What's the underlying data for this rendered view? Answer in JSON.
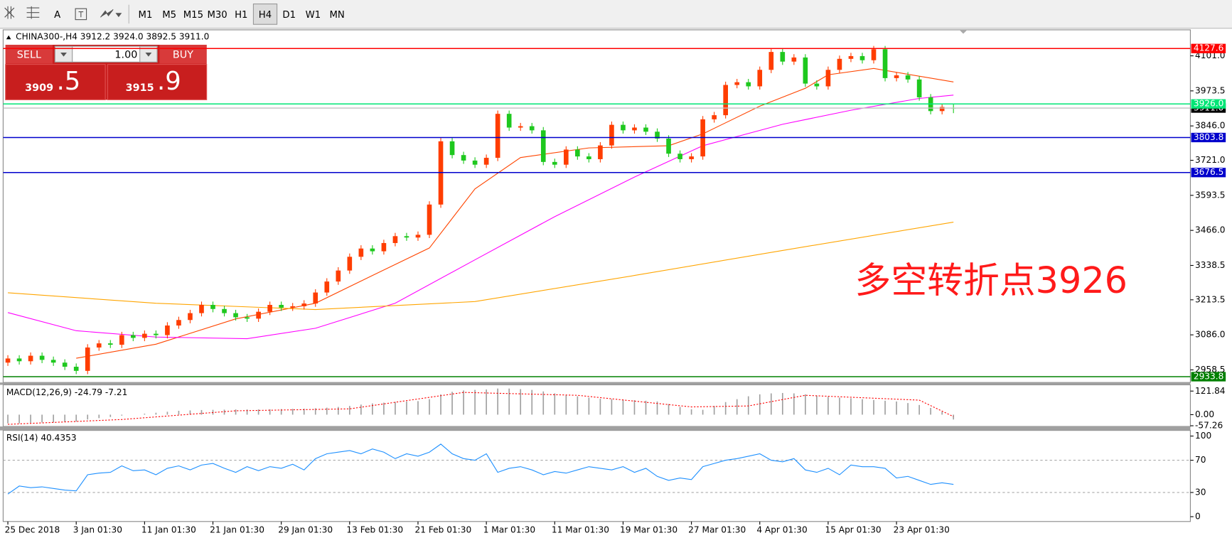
{
  "toolbar": {
    "tools": [
      "A"
    ],
    "timeframes": [
      "M1",
      "M5",
      "M15",
      "M30",
      "H1",
      "H4",
      "D1",
      "W1",
      "MN"
    ],
    "active_timeframe": "H4"
  },
  "trade_panel": {
    "sell": "SELL",
    "buy": "BUY",
    "lots": "1.00",
    "sell_big": "3909",
    "sell_small": ".5",
    "buy_big": "3915",
    "buy_small": ".9"
  },
  "chart_data": {
    "type": "candlestick",
    "header": "CHINA300-,H4  3912.2 3924.0 3892.5 3911.0",
    "annotation": "多空转折点3926",
    "up_color": "#ff3d00",
    "down_color": "#1ec81e",
    "categories": [
      "25 Dec 2018",
      null,
      null,
      null,
      null,
      null,
      "3 Jan 01:30",
      null,
      null,
      null,
      null,
      null,
      "11 Jan 01:30",
      null,
      null,
      null,
      null,
      null,
      "21 Jan 01:30",
      null,
      null,
      null,
      null,
      null,
      "29 Jan 01:30",
      null,
      null,
      null,
      null,
      null,
      "13 Feb 01:30",
      null,
      null,
      null,
      null,
      null,
      "21 Feb 01:30",
      null,
      null,
      null,
      null,
      null,
      "1 Mar 01:30",
      null,
      null,
      null,
      null,
      null,
      "11 Mar 01:30",
      null,
      null,
      null,
      null,
      null,
      "19 Mar 01:30",
      null,
      null,
      null,
      null,
      null,
      "27 Mar 01:30",
      null,
      null,
      null,
      null,
      null,
      "4 Apr 01:30",
      null,
      null,
      null,
      null,
      null,
      "15 Apr 01:30",
      null,
      null,
      null,
      null,
      null,
      "23 Apr 01:30",
      null,
      null,
      null,
      null,
      null
    ],
    "candles": {
      "open": [
        2985,
        3000,
        2990,
        3010,
        2995,
        2985,
        2970,
        2955,
        3040,
        3055,
        3050,
        3085,
        3075,
        3090,
        3085,
        3120,
        3140,
        3165,
        3195,
        3180,
        3165,
        3150,
        3145,
        3170,
        3195,
        3185,
        3190,
        3200,
        3240,
        3280,
        3320,
        3370,
        3400,
        3390,
        3420,
        3445,
        3440,
        3450,
        3560,
        3790,
        3740,
        3720,
        3705,
        3730,
        3890,
        3840,
        3845,
        3830,
        3715,
        3705,
        3760,
        3735,
        3725,
        3775,
        3850,
        3830,
        3840,
        3825,
        3800,
        3745,
        3725,
        3735,
        3870,
        3885,
        3995,
        4005,
        3990,
        4050,
        4115,
        4080,
        4095,
        4000,
        3990,
        4050,
        4090,
        4100,
        4085,
        4125,
        4020,
        4030,
        4015,
        3950,
        3900,
        3912.2
      ],
      "high": [
        3012,
        3012,
        3022,
        3022,
        3007,
        2997,
        2982,
        3052,
        3067,
        3067,
        3097,
        3097,
        3102,
        3102,
        3132,
        3152,
        3177,
        3207,
        3207,
        3192,
        3177,
        3162,
        3182,
        3207,
        3207,
        3202,
        3212,
        3252,
        3292,
        3332,
        3382,
        3412,
        3412,
        3432,
        3457,
        3457,
        3462,
        3572,
        3802,
        3802,
        3752,
        3732,
        3742,
        3902,
        3902,
        3857,
        3857,
        3842,
        3727,
        3772,
        3772,
        3747,
        3787,
        3862,
        3862,
        3852,
        3852,
        3837,
        3812,
        3757,
        3747,
        3882,
        3897,
        4007,
        4017,
        4017,
        4062,
        4127,
        4127,
        4107,
        4107,
        4012,
        4062,
        4102,
        4112,
        4112,
        4137,
        4137,
        4042,
        4042,
        4027,
        3962,
        3927,
        3924
      ],
      "low": [
        2973,
        2978,
        2978,
        2983,
        2973,
        2958,
        2943,
        2943,
        3028,
        3038,
        3038,
        3063,
        3063,
        3073,
        3073,
        3108,
        3128,
        3153,
        3168,
        3153,
        3138,
        3133,
        3133,
        3158,
        3173,
        3173,
        3178,
        3188,
        3228,
        3268,
        3308,
        3358,
        3378,
        3378,
        3408,
        3428,
        3428,
        3438,
        3548,
        3728,
        3708,
        3693,
        3693,
        3718,
        3828,
        3828,
        3818,
        3703,
        3693,
        3693,
        3723,
        3713,
        3713,
        3763,
        3818,
        3818,
        3813,
        3788,
        3733,
        3713,
        3713,
        3723,
        3858,
        3873,
        3983,
        3978,
        3978,
        4038,
        4068,
        4068,
        3988,
        3978,
        3978,
        4038,
        4078,
        4073,
        4073,
        4008,
        4008,
        4003,
        3938,
        3888,
        3888,
        3892.5
      ],
      "close": [
        3000,
        2990,
        3010,
        2995,
        2985,
        2970,
        2955,
        3040,
        3055,
        3050,
        3085,
        3075,
        3090,
        3085,
        3120,
        3140,
        3165,
        3195,
        3180,
        3165,
        3150,
        3145,
        3170,
        3195,
        3185,
        3190,
        3200,
        3240,
        3280,
        3320,
        3370,
        3400,
        3390,
        3420,
        3445,
        3440,
        3450,
        3560,
        3790,
        3740,
        3720,
        3705,
        3730,
        3890,
        3840,
        3845,
        3830,
        3715,
        3705,
        3760,
        3735,
        3725,
        3775,
        3850,
        3830,
        3840,
        3825,
        3800,
        3745,
        3725,
        3735,
        3870,
        3885,
        3995,
        4005,
        3990,
        4050,
        4115,
        4080,
        4095,
        4000,
        3990,
        4050,
        4090,
        4100,
        4085,
        4125,
        4020,
        4030,
        4015,
        3950,
        3900,
        3915,
        3911
      ]
    },
    "ylim": [
      2912.7,
      4195.5
    ],
    "yticks": [
      {
        "value": 4101,
        "label": "4101.0"
      },
      3973.5,
      {
        "value": 3846,
        "label": "3846.0"
      },
      {
        "value": 3721,
        "label": "3721.0"
      },
      3593.5,
      {
        "value": 3466,
        "label": "3466.0"
      },
      3338.5,
      3213.5,
      {
        "value": 3086,
        "label": "3086.0"
      },
      2958.5
    ],
    "levels": [
      {
        "value": 4127.6,
        "label": "4127.6",
        "color": "#ff0000",
        "label_background": "#ff0000"
      },
      {
        "value": 3911,
        "label": "3911.0",
        "color": "#c0c0c0",
        "label_background": "#000000"
      },
      {
        "value": 3926,
        "label": "3926.0",
        "color": "#00e676",
        "label_background": "#00e676"
      },
      {
        "value": 3803.8,
        "label": "3803.8",
        "color": "#0000cc",
        "label_background": "#0000cc"
      },
      {
        "value": 3676.5,
        "label": "3676.5",
        "color": "#0000cc",
        "label_background": "#0000cc"
      },
      {
        "value": 2933.8,
        "label": "2933.8",
        "color": "#008000",
        "label_background": "#008000"
      }
    ],
    "series": [
      {
        "color": "#ff4500",
        "x": [
          6,
          13,
          20,
          27,
          32,
          37,
          41,
          45,
          51,
          58,
          61,
          66,
          70,
          72,
          76,
          83
        ],
        "values": [
          3001,
          3052,
          3144,
          3201,
          3302,
          3402,
          3617,
          3731,
          3766,
          3774,
          3817,
          3918,
          3983,
          4032,
          4055,
          4006
        ]
      },
      {
        "color": "#ff00ff",
        "x": [
          0,
          6,
          13,
          21,
          27,
          34,
          41,
          48,
          55,
          61,
          68,
          74,
          80,
          83
        ],
        "values": [
          3167,
          3101,
          3078,
          3072,
          3110,
          3201,
          3359,
          3516,
          3660,
          3774,
          3852,
          3903,
          3946,
          3958
        ]
      },
      {
        "color": "#ffa500",
        "x": [
          0,
          13,
          27,
          41,
          55,
          68,
          83
        ],
        "values": [
          3239,
          3201,
          3178,
          3207,
          3302,
          3393,
          3496
        ]
      }
    ],
    "indicators": [
      {
        "type": "macd",
        "title": "MACD(12,26,9) -24.79 -7.21",
        "color": "#a0a0a0",
        "ylim": [
          -61,
          154
        ],
        "yticks": [
          121.84,
          {
            "value": 0,
            "label": "0.00"
          },
          -57.26
        ],
        "values": [
          -45,
          -45,
          -42,
          -40,
          -40,
          -38,
          -36,
          -25,
          -18,
          -12,
          -5,
          0,
          5,
          10,
          15,
          20,
          22,
          24,
          25,
          26,
          27,
          27,
          27,
          28,
          29,
          30,
          31,
          33,
          36,
          40,
          45,
          52,
          58,
          62,
          66,
          68,
          70,
          80,
          105,
          118,
          125,
          128,
          130,
          135,
          135,
          132,
          128,
          120,
          110,
          100,
          95,
          88,
          82,
          80,
          78,
          75,
          72,
          68,
          55,
          40,
          28,
          25,
          45,
          65,
          80,
          95,
          105,
          110,
          112,
          110,
          105,
          98,
          92,
          88,
          85,
          80,
          76,
          72,
          68,
          60,
          50,
          35,
          15,
          -25
        ],
        "signal": {
          "color": "#ff0000",
          "x": [
            0,
            10,
            20,
            30,
            40,
            50,
            60,
            65,
            70,
            80,
            83
          ],
          "values": [
            -50,
            -25,
            20,
            30,
            115,
            100,
            40,
            45,
            100,
            75,
            -10
          ]
        }
      },
      {
        "type": "rsi",
        "title": "RSI(14) 40.4353",
        "color": "#1e90ff",
        "ylim": [
          -6,
          107
        ],
        "yticks": [
          100,
          70,
          30,
          0
        ],
        "levels": [
          70,
          30
        ],
        "values": [
          28,
          38,
          36,
          37,
          35,
          33,
          32,
          52,
          54,
          55,
          63,
          57,
          58,
          52,
          60,
          63,
          58,
          64,
          66,
          60,
          55,
          62,
          57,
          62,
          60,
          65,
          58,
          72,
          78,
          80,
          82,
          78,
          84,
          80,
          72,
          78,
          75,
          80,
          90,
          78,
          72,
          70,
          78,
          55,
          60,
          62,
          58,
          52,
          56,
          54,
          58,
          62,
          60,
          58,
          62,
          55,
          60,
          50,
          45,
          48,
          46,
          62,
          66,
          70,
          72,
          75,
          78,
          70,
          68,
          72,
          58,
          55,
          60,
          52,
          64,
          62,
          62,
          60,
          48,
          50,
          45,
          40,
          42,
          40
        ]
      }
    ]
  }
}
